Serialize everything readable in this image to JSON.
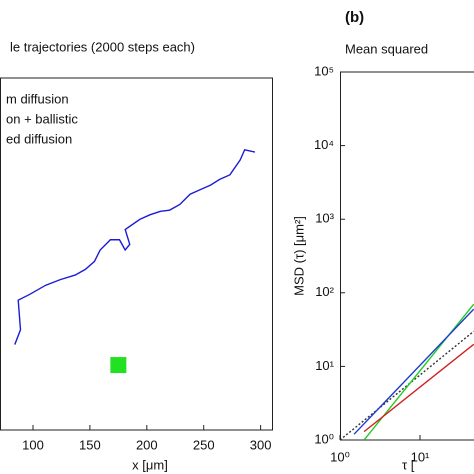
{
  "chart_data": [
    {
      "type": "line",
      "title": "le trajectories (2000 steps each)",
      "legend": [
        "m diffusion",
        "on + ballistic",
        "ed diffusion"
      ],
      "xlabel": "x [μm]",
      "xlim": [
        71,
        310
      ],
      "ylim": [
        0,
        309
      ],
      "xticks": [
        100,
        150,
        200,
        250,
        300
      ],
      "series": [
        {
          "color": "#1c1cd6",
          "x": [
            84,
            89,
            87,
            97,
            111,
            124,
            137,
            146,
            154,
            159,
            168,
            176,
            181,
            185,
            181,
            194,
            203,
            212,
            220,
            229,
            238,
            247,
            256,
            264,
            273,
            282,
            286,
            295
          ],
          "values": [
            75,
            88,
            114,
            119,
            127,
            132,
            136,
            141,
            148,
            158,
            167,
            167,
            158,
            163,
            176,
            185,
            189,
            192,
            193,
            198,
            207,
            211,
            215,
            220,
            224,
            237,
            246,
            244
          ]
        }
      ],
      "markers": [
        {
          "color": "#22e022",
          "x": [
            175
          ],
          "values": [
            57
          ]
        }
      ]
    },
    {
      "type": "line",
      "log": true,
      "panel": "(b)",
      "title": "Mean squared",
      "xlabel": "τ [",
      "ylabel": "MSD (τ) [μm²]",
      "xlim": [
        1,
        100
      ],
      "ylim": [
        1,
        100000
      ],
      "xticks": [
        {
          "value": 1,
          "label": "10⁰"
        },
        {
          "value": 10,
          "label": "10¹"
        }
      ],
      "yticks": [
        {
          "value": 1,
          "label": "10⁰"
        },
        {
          "value": 10,
          "label": "10¹"
        },
        {
          "value": 100,
          "label": "10²"
        },
        {
          "value": 1000,
          "label": "10³"
        },
        {
          "value": 10000,
          "label": "10⁴"
        },
        {
          "value": 100000,
          "label": "10⁵"
        }
      ],
      "series": [
        {
          "color": "#333333",
          "dash": true,
          "x": [
            1,
            47
          ],
          "values": [
            1,
            30
          ]
        },
        {
          "color": "#22cc22",
          "x": [
            2,
            47
          ],
          "values": [
            1,
            70
          ]
        },
        {
          "color": "#1e3cd0",
          "x": [
            1.5,
            47
          ],
          "values": [
            1.2,
            60
          ]
        },
        {
          "color": "#d02020",
          "x": [
            2,
            47
          ],
          "values": [
            1.3,
            20
          ]
        }
      ]
    }
  ]
}
